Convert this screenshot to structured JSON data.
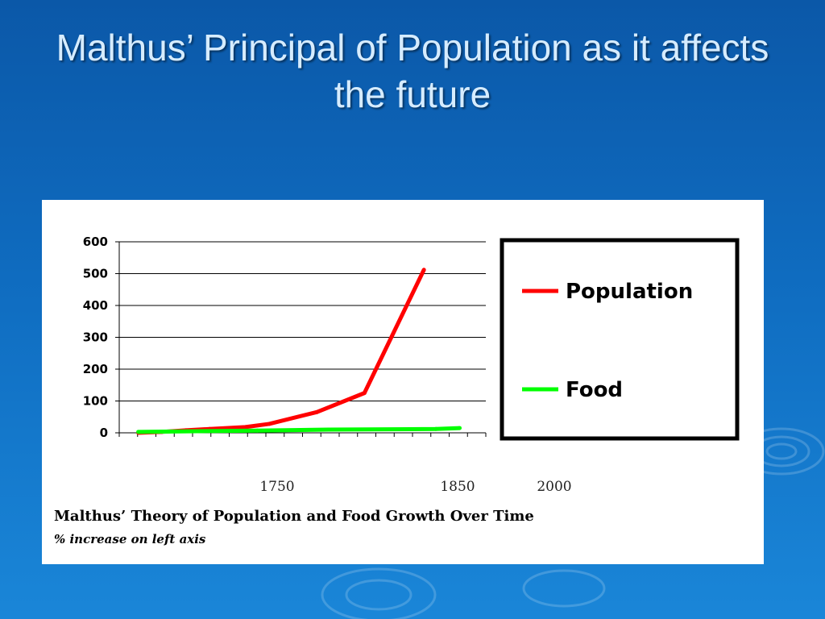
{
  "slide": {
    "title": "Malthus’ Principal of Population as it affects the future"
  },
  "chart_data": {
    "type": "line",
    "title": "Malthus’ Theory of Population and Food Growth Over Time",
    "subtitle": "% increase on left axis",
    "xlabel": "",
    "ylabel": "",
    "ylim": [
      0,
      600
    ],
    "y_ticks": [
      0,
      100,
      200,
      300,
      400,
      500,
      600
    ],
    "x_tick_labels": [
      "1750",
      "1850",
      "2000"
    ],
    "grid": true,
    "legend_placement": "right",
    "series": [
      {
        "name": "Population",
        "color": "#ff0000",
        "points": [
          [
            1725,
            0
          ],
          [
            1735,
            3
          ],
          [
            1745,
            8
          ],
          [
            1755,
            12
          ],
          [
            1770,
            18
          ],
          [
            1780,
            28
          ],
          [
            1800,
            65
          ],
          [
            1820,
            125
          ],
          [
            1845,
            512
          ]
        ]
      },
      {
        "name": "Food",
        "color": "#00ff00",
        "points": [
          [
            1725,
            3
          ],
          [
            1775,
            7
          ],
          [
            1805,
            10
          ],
          [
            1850,
            12
          ],
          [
            1860,
            15
          ]
        ]
      }
    ]
  }
}
